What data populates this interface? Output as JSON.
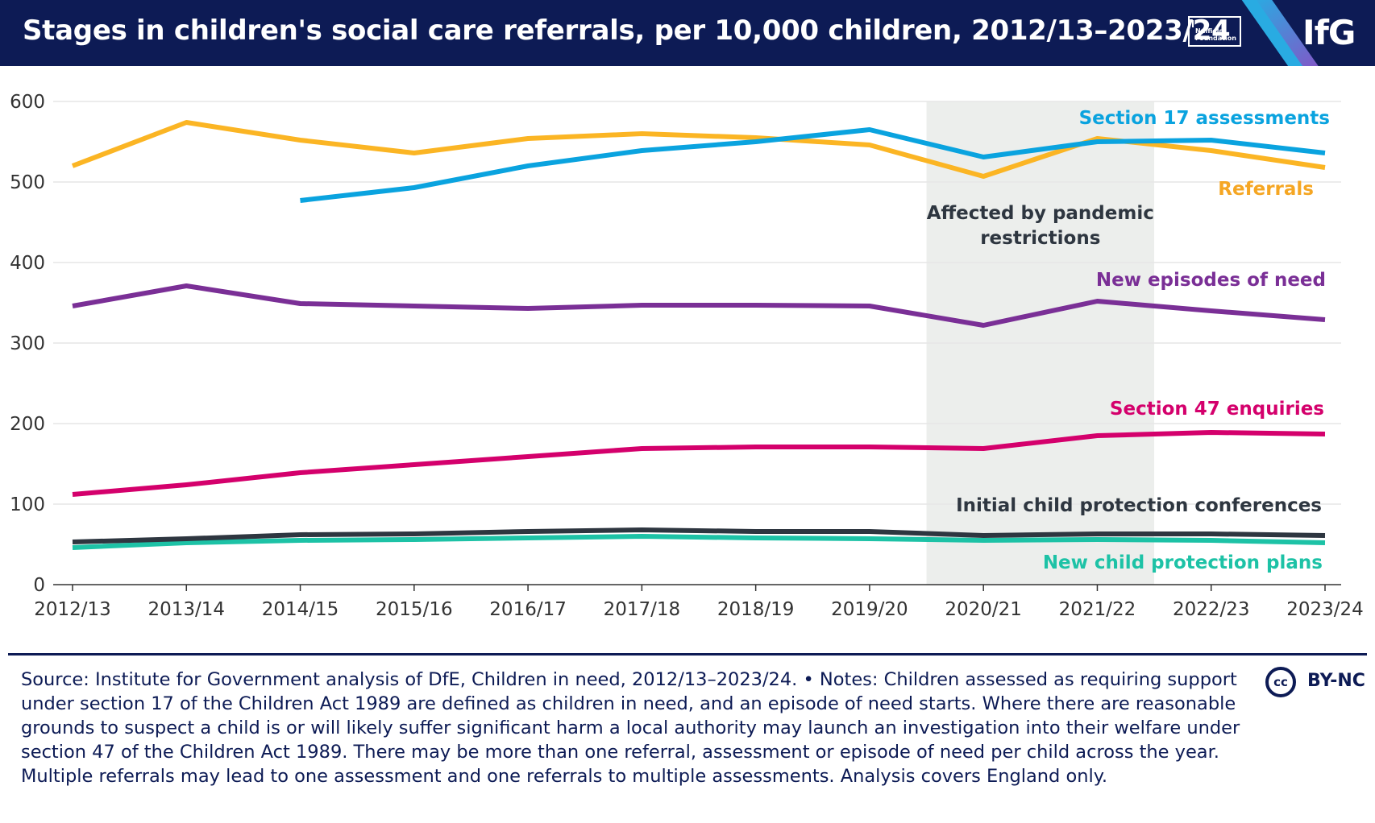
{
  "header": {
    "title": "Stages in children's social care referrals, per 10,000 children, 2012/13–2023/24",
    "nuffield_logo_text": "Nuffield Foundation",
    "brand": "IfG"
  },
  "chart_data": {
    "type": "line",
    "title": "Stages in children's social care referrals, per 10,000 children, 2012/13–2023/24",
    "xlabel": "",
    "ylabel": "",
    "ylim": [
      0,
      600
    ],
    "yticks": [
      0,
      100,
      200,
      300,
      400,
      500,
      600
    ],
    "grid": true,
    "categories": [
      "2012/13",
      "2013/14",
      "2014/15",
      "2015/16",
      "2016/17",
      "2017/18",
      "2018/19",
      "2019/20",
      "2020/21",
      "2021/22",
      "2022/23",
      "2023/24"
    ],
    "shaded_region": {
      "from": "2020/21",
      "to": "2021/22",
      "label": "Affected by pandemic restrictions",
      "label_lines": [
        "Affected by pandemic",
        "restrictions"
      ],
      "color": "#eceeec"
    },
    "series": [
      {
        "name": "Referrals",
        "color": "#fbb524",
        "label_color": "#f5a623",
        "values": [
          520,
          574,
          552,
          536,
          554,
          560,
          555,
          546,
          507,
          554,
          539,
          518
        ]
      },
      {
        "name": "Section 17 assessments",
        "color": "#0aa3df",
        "label_color": "#0aa3df",
        "values": [
          null,
          null,
          477,
          493,
          520,
          539,
          550,
          565,
          531,
          550,
          552,
          536
        ]
      },
      {
        "name": "New episodes of need",
        "color": "#7a2f96",
        "label_color": "#7a2f96",
        "values": [
          346,
          371,
          349,
          346,
          343,
          347,
          347,
          346,
          322,
          352,
          340,
          329
        ]
      },
      {
        "name": "Section 47 enquiries",
        "color": "#d4006c",
        "label_color": "#d4006c",
        "values": [
          112,
          124,
          139,
          149,
          159,
          169,
          171,
          171,
          169,
          185,
          189,
          187
        ]
      },
      {
        "name": "Initial child protection conferences",
        "color": "#2e3640",
        "label_color": "#2e3640",
        "values": [
          53,
          57,
          62,
          63,
          66,
          68,
          66,
          66,
          61,
          63,
          63,
          61
        ]
      },
      {
        "name": "New child protection plans",
        "color": "#1dc2a6",
        "label_color": "#1dc2a6",
        "values": [
          46,
          52,
          55,
          56,
          58,
          60,
          58,
          57,
          55,
          56,
          55,
          52
        ]
      }
    ]
  },
  "footer": {
    "source": "Source: Institute for Government analysis of DfE, Children in need, 2012/13–2023/24. • Notes: Children assessed as requiring support under section 17 of the Children Act 1989 are defined as children in need, and an episode of need starts. Where there are reasonable grounds to suspect a child is or will likely suffer significant harm a local authority may launch an investigation into their welfare under section 47 of the Children Act 1989. There may be more than one referral, assessment or episode of need per child across the year. Multiple referrals may lead to one assessment and one referrals to multiple assessments. Analysis covers England only.",
    "cc_badge": "cc",
    "license": "BY-NC"
  },
  "colors": {
    "header_bg": "#0d1b55",
    "stripe_blue": "#29abe2",
    "stripe_purple": "#8a4fc4",
    "axis": "#333333",
    "grid": "#e6e6e6"
  }
}
